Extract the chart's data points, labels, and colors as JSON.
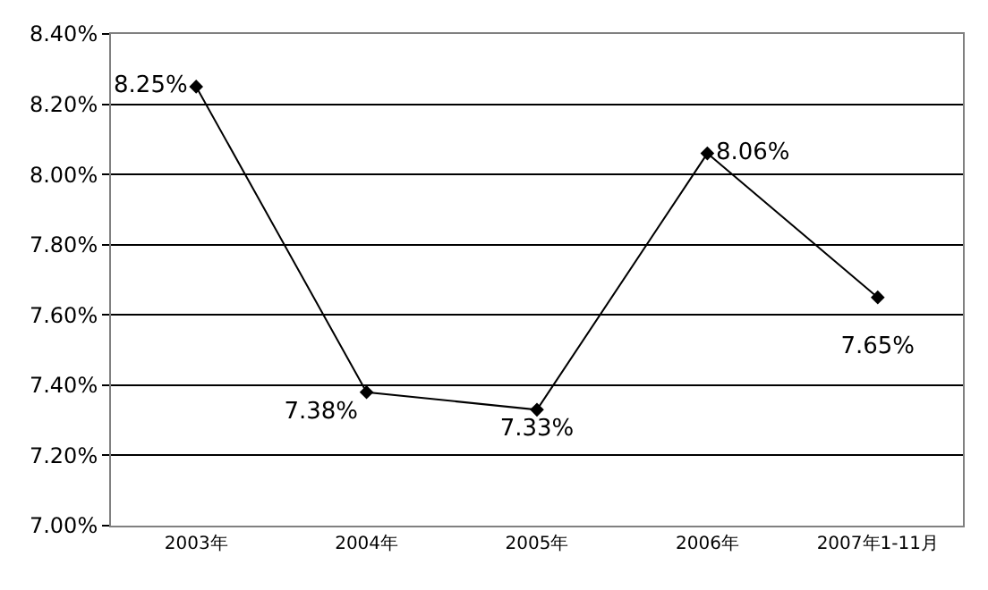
{
  "chart_data": {
    "type": "line",
    "categories": [
      "2003年",
      "2004年",
      "2005年",
      "2006年",
      "2007年1-11月"
    ],
    "series": [
      {
        "color": "#000000",
        "values": [
          8.25,
          7.38,
          7.33,
          8.06,
          7.65
        ],
        "value_labels": [
          "8.25%",
          "7.38%",
          "7.33%",
          "8.06%",
          "7.65%"
        ]
      }
    ],
    "ylim": [
      7.0,
      8.4
    ],
    "yticks": [
      {
        "value": 7.0,
        "label": "7.00%"
      },
      {
        "value": 7.2,
        "label": "7.20%"
      },
      {
        "value": 7.4,
        "label": "7.40%"
      },
      {
        "value": 7.6,
        "label": "7.60%"
      },
      {
        "value": 7.8,
        "label": "7.80%"
      },
      {
        "value": 8.0,
        "label": "8.00%"
      },
      {
        "value": 8.2,
        "label": "8.20%"
      },
      {
        "value": 8.4,
        "label": "8.40%"
      }
    ],
    "grid": "y",
    "legend": false,
    "marker": "diamond",
    "line_style": "solid"
  }
}
